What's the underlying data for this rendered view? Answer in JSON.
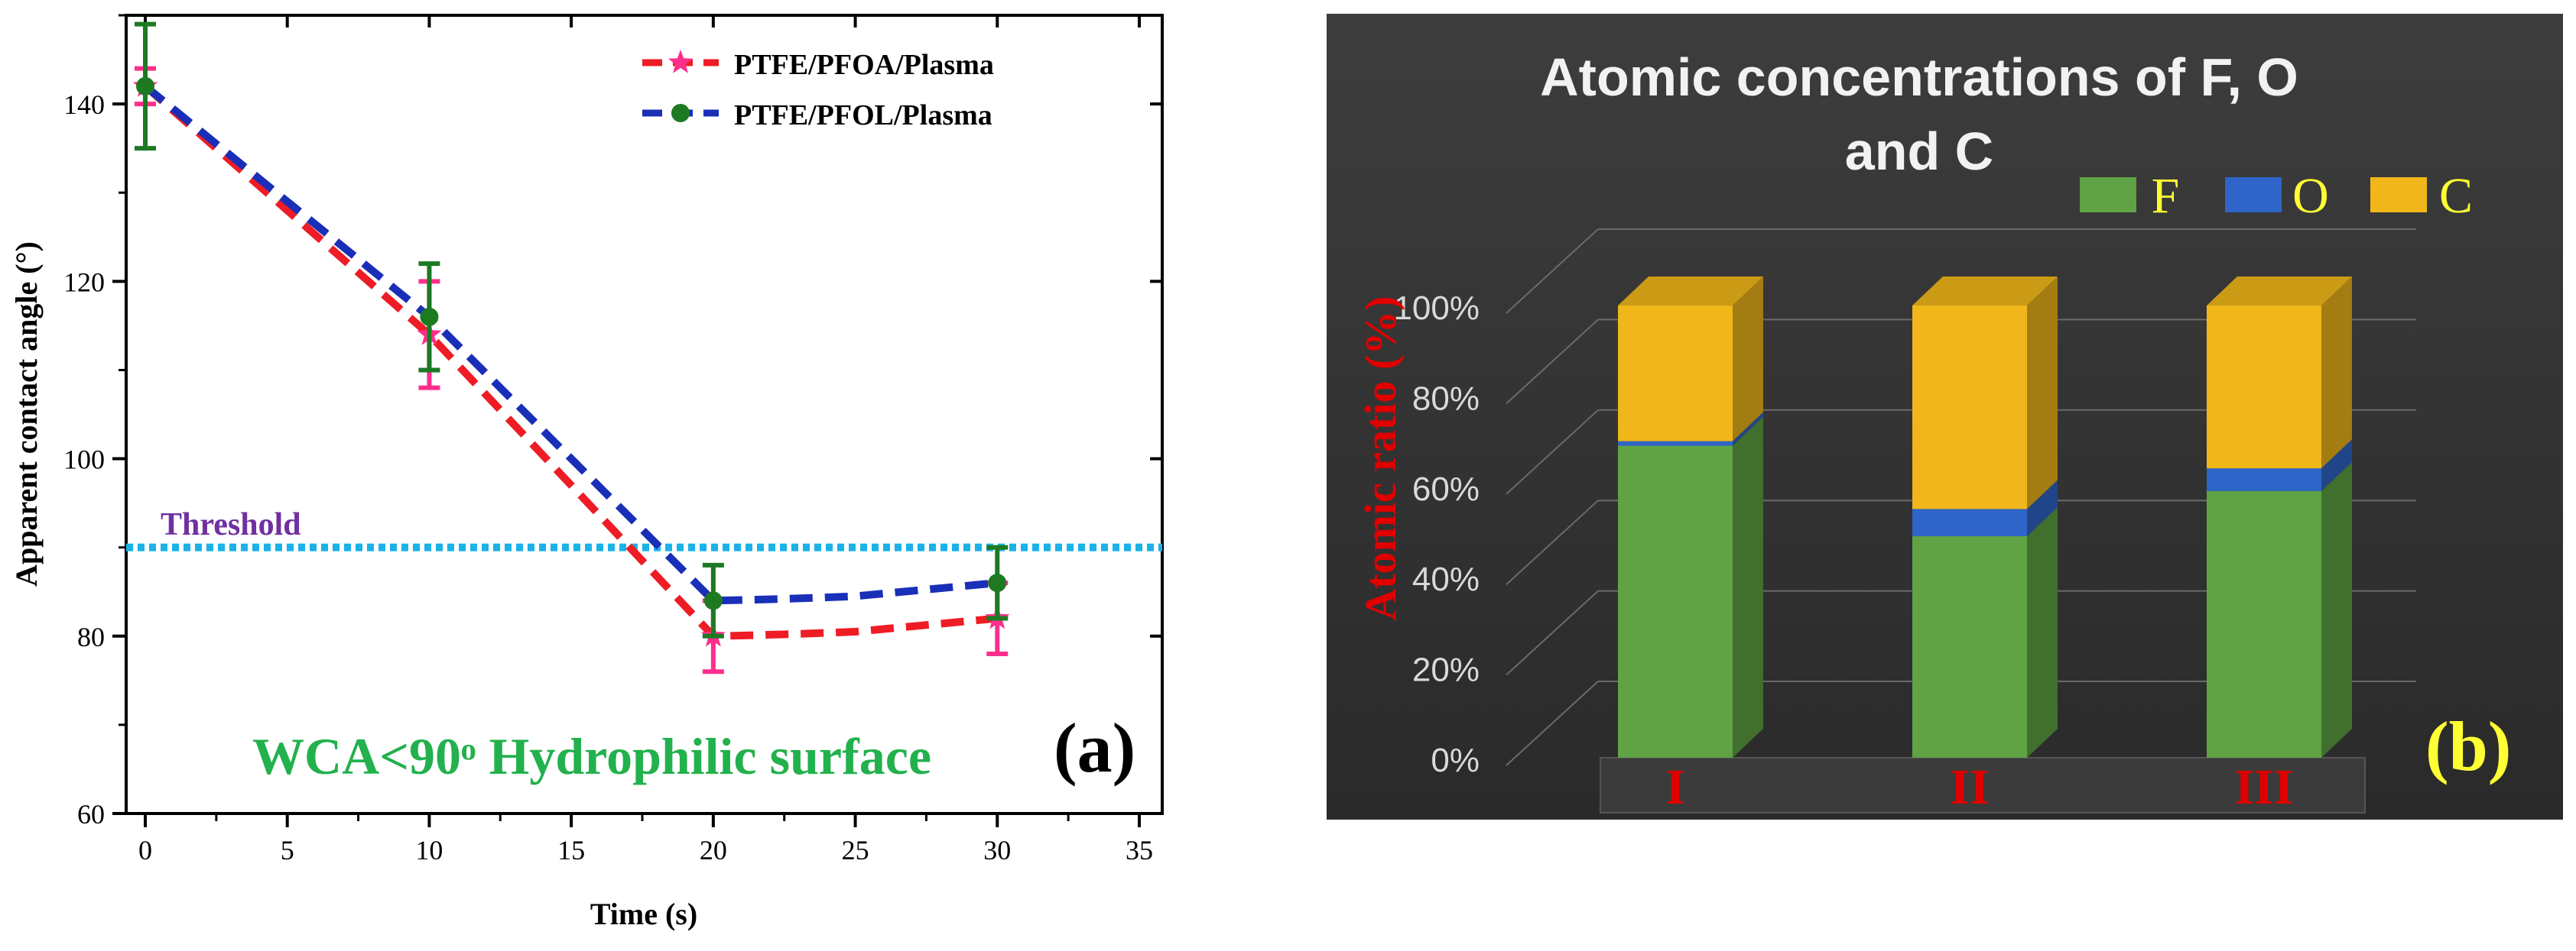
{
  "chart_data": [
    {
      "type": "line",
      "panel_label": "(a)",
      "xlabel": "Time (s)",
      "ylabel": "Apparent contact angle (°)",
      "xlim": [
        0,
        35
      ],
      "ylim": [
        60,
        150
      ],
      "xticks": [
        "0",
        "5",
        "10",
        "15",
        "20",
        "25",
        "30",
        "35"
      ],
      "yticks": [
        "60",
        "80",
        "100",
        "120",
        "140"
      ],
      "threshold": {
        "value": 90,
        "label": "Threshold",
        "color": "#1ab2e8"
      },
      "annotation": "WCA<90ᵒ Hydrophilic surface",
      "annotation_color": "#22b14c",
      "series": [
        {
          "name": "PTFE/PFOA/Plasma",
          "x": [
            0,
            10,
            20,
            30
          ],
          "y": [
            142,
            114,
            80,
            82
          ],
          "err": [
            2,
            6,
            4,
            4
          ],
          "line_color": "#ee1c25",
          "marker": "star",
          "marker_color": "#ff2e8c",
          "err_color": "#ff2e8c"
        },
        {
          "name": "PTFE/PFOL/Plasma",
          "x": [
            0,
            10,
            20,
            30
          ],
          "y": [
            142,
            116,
            84,
            86
          ],
          "err": [
            7,
            6,
            4,
            4
          ],
          "line_color": "#1a2fb8",
          "marker": "circle",
          "marker_color": "#1d7a23",
          "err_color": "#1d7a23"
        }
      ]
    },
    {
      "type": "bar",
      "subtype": "stacked-3d",
      "panel_label": "(b)",
      "title_line1": "Atomic concentrations of F, O",
      "title_line2": "and C",
      "ylabel": "Atomic ratio (%)",
      "ylim": [
        0,
        100
      ],
      "yticks": [
        "0%",
        "20%",
        "40%",
        "60%",
        "80%",
        "100%"
      ],
      "categories": [
        "I",
        "II",
        "III"
      ],
      "series": [
        {
          "name": "F",
          "values": [
            69,
            49,
            59
          ],
          "color": "#5fa344"
        },
        {
          "name": "O",
          "values": [
            1,
            6,
            5
          ],
          "color": "#2f65c8"
        },
        {
          "name": "C",
          "values": [
            30,
            45,
            36
          ],
          "color": "#f0b61a"
        }
      ],
      "legend_color": "#ffff33",
      "label_color": "#e00000",
      "background": "#333333"
    }
  ]
}
